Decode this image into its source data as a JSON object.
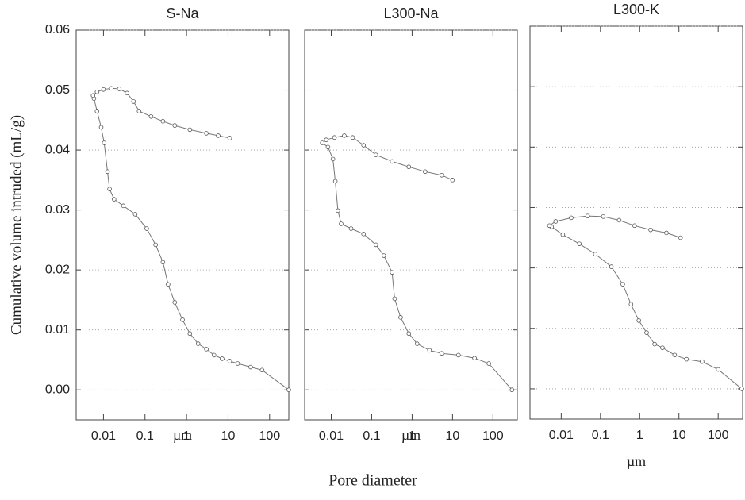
{
  "shared_xlabel": "Pore diameter",
  "chart_data": [
    {
      "type": "line",
      "title": "S-Na",
      "ylabel": "Cumulative volume intruded (mL/g)",
      "xlabel": "µm",
      "xscale": "log",
      "xlim": [
        0.0022,
        290
      ],
      "ylim": [
        -0.005,
        0.06
      ],
      "grid": true,
      "ytick_labels": true,
      "color": "#777777",
      "xticks": [
        0.01,
        0.1,
        1,
        10,
        100
      ],
      "yticks": [
        0.06,
        0.05,
        0.04,
        0.03,
        0.02,
        0.01,
        {
          "value": 0,
          "label": "0.00"
        }
      ],
      "x": [
        290,
        66,
        35,
        17,
        11,
        7.2,
        4.6,
        3.0,
        1.9,
        1.2,
        0.8,
        0.52,
        0.36,
        0.27,
        0.18,
        0.11,
        0.058,
        0.03,
        0.018,
        0.014,
        0.0125,
        0.0104,
        0.0088,
        0.007,
        0.0059,
        0.0056,
        0.007,
        0.01,
        0.0155,
        0.024,
        0.037,
        0.053,
        0.072,
        0.14,
        0.27,
        0.52,
        1.2,
        3.0,
        5.8,
        11
      ],
      "values": [
        0,
        0.0033,
        0.0038,
        0.0044,
        0.0048,
        0.0052,
        0.0058,
        0.0068,
        0.0077,
        0.0094,
        0.0117,
        0.0146,
        0.0176,
        0.0213,
        0.0242,
        0.0269,
        0.0293,
        0.0307,
        0.0318,
        0.0335,
        0.0364,
        0.0412,
        0.0438,
        0.0465,
        0.0486,
        0.0491,
        0.0497,
        0.0501,
        0.0503,
        0.0502,
        0.0495,
        0.0481,
        0.0465,
        0.0456,
        0.0448,
        0.0441,
        0.0434,
        0.0428,
        0.0424,
        0.042
      ]
    },
    {
      "type": "line",
      "title": "L300-Na",
      "xlabel": "µm",
      "xscale": "log",
      "xlim": [
        0.0022,
        400
      ],
      "ylim": [
        -0.005,
        0.06
      ],
      "grid": true,
      "ytick_labels": false,
      "color": "#777777",
      "xticks": [
        0.01,
        0.1,
        1,
        10,
        100
      ],
      "yticks": [
        0.06,
        0.05,
        0.04,
        0.03,
        0.02,
        0.01,
        0
      ],
      "x": [
        295,
        79,
        35,
        14,
        5.4,
        2.7,
        1.33,
        0.83,
        0.52,
        0.37,
        0.32,
        0.2,
        0.127,
        0.063,
        0.031,
        0.0176,
        0.0146,
        0.0126,
        0.011,
        0.0083,
        0.006,
        0.0075,
        0.012,
        0.021,
        0.034,
        0.063,
        0.127,
        0.32,
        0.83,
        2.1,
        5.4,
        10
      ],
      "values": [
        0,
        0.0044,
        0.0053,
        0.0058,
        0.0061,
        0.0066,
        0.0077,
        0.0094,
        0.0121,
        0.0152,
        0.0196,
        0.0224,
        0.0242,
        0.026,
        0.0269,
        0.0277,
        0.0299,
        0.0348,
        0.0385,
        0.0405,
        0.0412,
        0.0417,
        0.0421,
        0.0424,
        0.0421,
        0.0408,
        0.0392,
        0.0381,
        0.0372,
        0.0364,
        0.0358,
        0.035
      ]
    },
    {
      "type": "line",
      "title": "L300-K",
      "xlabel": "µm",
      "xscale": "log",
      "xlim": [
        0.0016,
        420
      ],
      "ylim": [
        -0.005,
        0.06
      ],
      "grid": true,
      "ytick_labels": false,
      "color": "#777777",
      "xticks": [
        0.01,
        0.1,
        1,
        10,
        100
      ],
      "yticks": [
        0.06,
        0.05,
        0.04,
        0.03,
        0.02,
        0.01,
        0
      ],
      "x": [
        400,
        100,
        39,
        15.6,
        7.8,
        3.8,
        2.4,
        1.5,
        0.95,
        0.6,
        0.37,
        0.19,
        0.074,
        0.029,
        0.011,
        0.0057,
        0.005,
        0.0072,
        0.018,
        0.047,
        0.118,
        0.3,
        0.74,
        1.9,
        4.8,
        11
      ],
      "values": [
        0,
        0.0032,
        0.0045,
        0.0049,
        0.0056,
        0.0068,
        0.0074,
        0.0093,
        0.0113,
        0.014,
        0.0173,
        0.0202,
        0.0223,
        0.024,
        0.0255,
        0.0268,
        0.027,
        0.0277,
        0.0283,
        0.0286,
        0.0285,
        0.0279,
        0.027,
        0.0263,
        0.0258,
        0.025
      ]
    }
  ]
}
